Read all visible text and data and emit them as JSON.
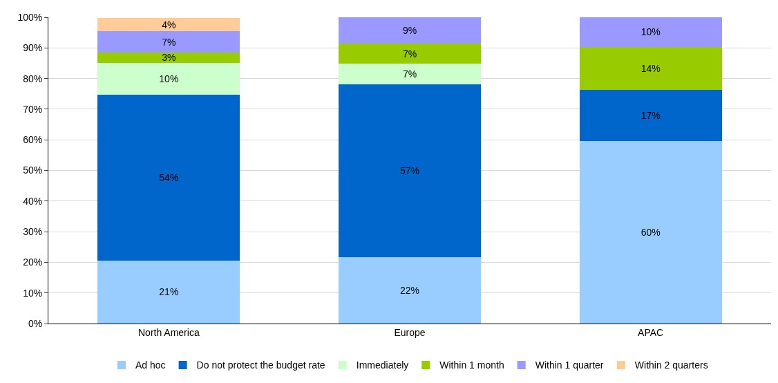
{
  "chart_data": {
    "type": "bar",
    "stacked": true,
    "categories": [
      "North America",
      "Europe",
      "APAC"
    ],
    "series": [
      {
        "name": "Ad hoc",
        "color": "#99ccff",
        "values": [
          20.6,
          21.6,
          59.6
        ],
        "value_labels": [
          "21%",
          "22%",
          "60%"
        ]
      },
      {
        "name": "Do not protect the budget rate",
        "color": "#0066cc",
        "values": [
          54.2,
          56.6,
          16.8
        ],
        "value_labels": [
          "54%",
          "57%",
          "17%"
        ]
      },
      {
        "name": "Immediately",
        "color": "#ccffcc",
        "values": [
          10.4,
          6.6,
          null
        ],
        "value_labels": [
          "10%",
          "7%",
          null
        ]
      },
      {
        "name": "Within 1 month",
        "color": "#99cc00",
        "values": [
          3.3,
          6.6,
          14.0
        ],
        "value_labels": [
          "3%",
          "7%",
          "14%"
        ]
      },
      {
        "name": "Within 1 quarter",
        "color": "#9999ff",
        "values": [
          6.9,
          8.6,
          9.6
        ],
        "value_labels": [
          "7%",
          "9%",
          "10%"
        ]
      },
      {
        "name": "Within 2 quarters",
        "color": "#ffcc99",
        "values": [
          4.4,
          null,
          null
        ],
        "value_labels": [
          "4%",
          null,
          null
        ]
      }
    ],
    "ylim": [
      0,
      100
    ],
    "yticks": [
      {
        "value": 0,
        "label": "0%"
      },
      {
        "value": 10,
        "label": "10%"
      },
      {
        "value": 20,
        "label": "20%"
      },
      {
        "value": 30,
        "label": "30%"
      },
      {
        "value": 40,
        "label": "40%"
      },
      {
        "value": 50,
        "label": "50%"
      },
      {
        "value": 60,
        "label": "60%"
      },
      {
        "value": 70,
        "label": "70%"
      },
      {
        "value": 80,
        "label": "80%"
      },
      {
        "value": 90,
        "label": "90%"
      },
      {
        "value": 100,
        "label": "100%"
      }
    ],
    "grid": "y",
    "legend": "bottom"
  }
}
